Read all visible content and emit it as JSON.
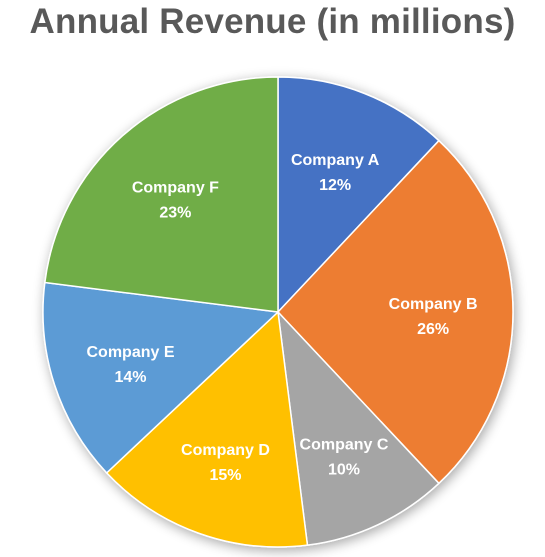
{
  "chart_data": {
    "type": "pie",
    "title": "Annual Revenue (in millions)",
    "start_angle_deg": 0,
    "direction": "clockwise",
    "slices": [
      {
        "label": "Company A",
        "value": 12,
        "display": "12%",
        "color": "#4472C4"
      },
      {
        "label": "Company B",
        "value": 26,
        "display": "26%",
        "color": "#ED7D31"
      },
      {
        "label": "Company C",
        "value": 10,
        "display": "10%",
        "color": "#A5A5A5"
      },
      {
        "label": "Company D",
        "value": 15,
        "display": "15%",
        "color": "#FFC000"
      },
      {
        "label": "Company E",
        "value": 14,
        "display": "14%",
        "color": "#5B9BD5"
      },
      {
        "label": "Company F",
        "value": 23,
        "display": "23%",
        "color": "#70AD47"
      }
    ],
    "slice_border_color": "#ffffff",
    "label_color": "#ffffff",
    "legend": "none"
  }
}
